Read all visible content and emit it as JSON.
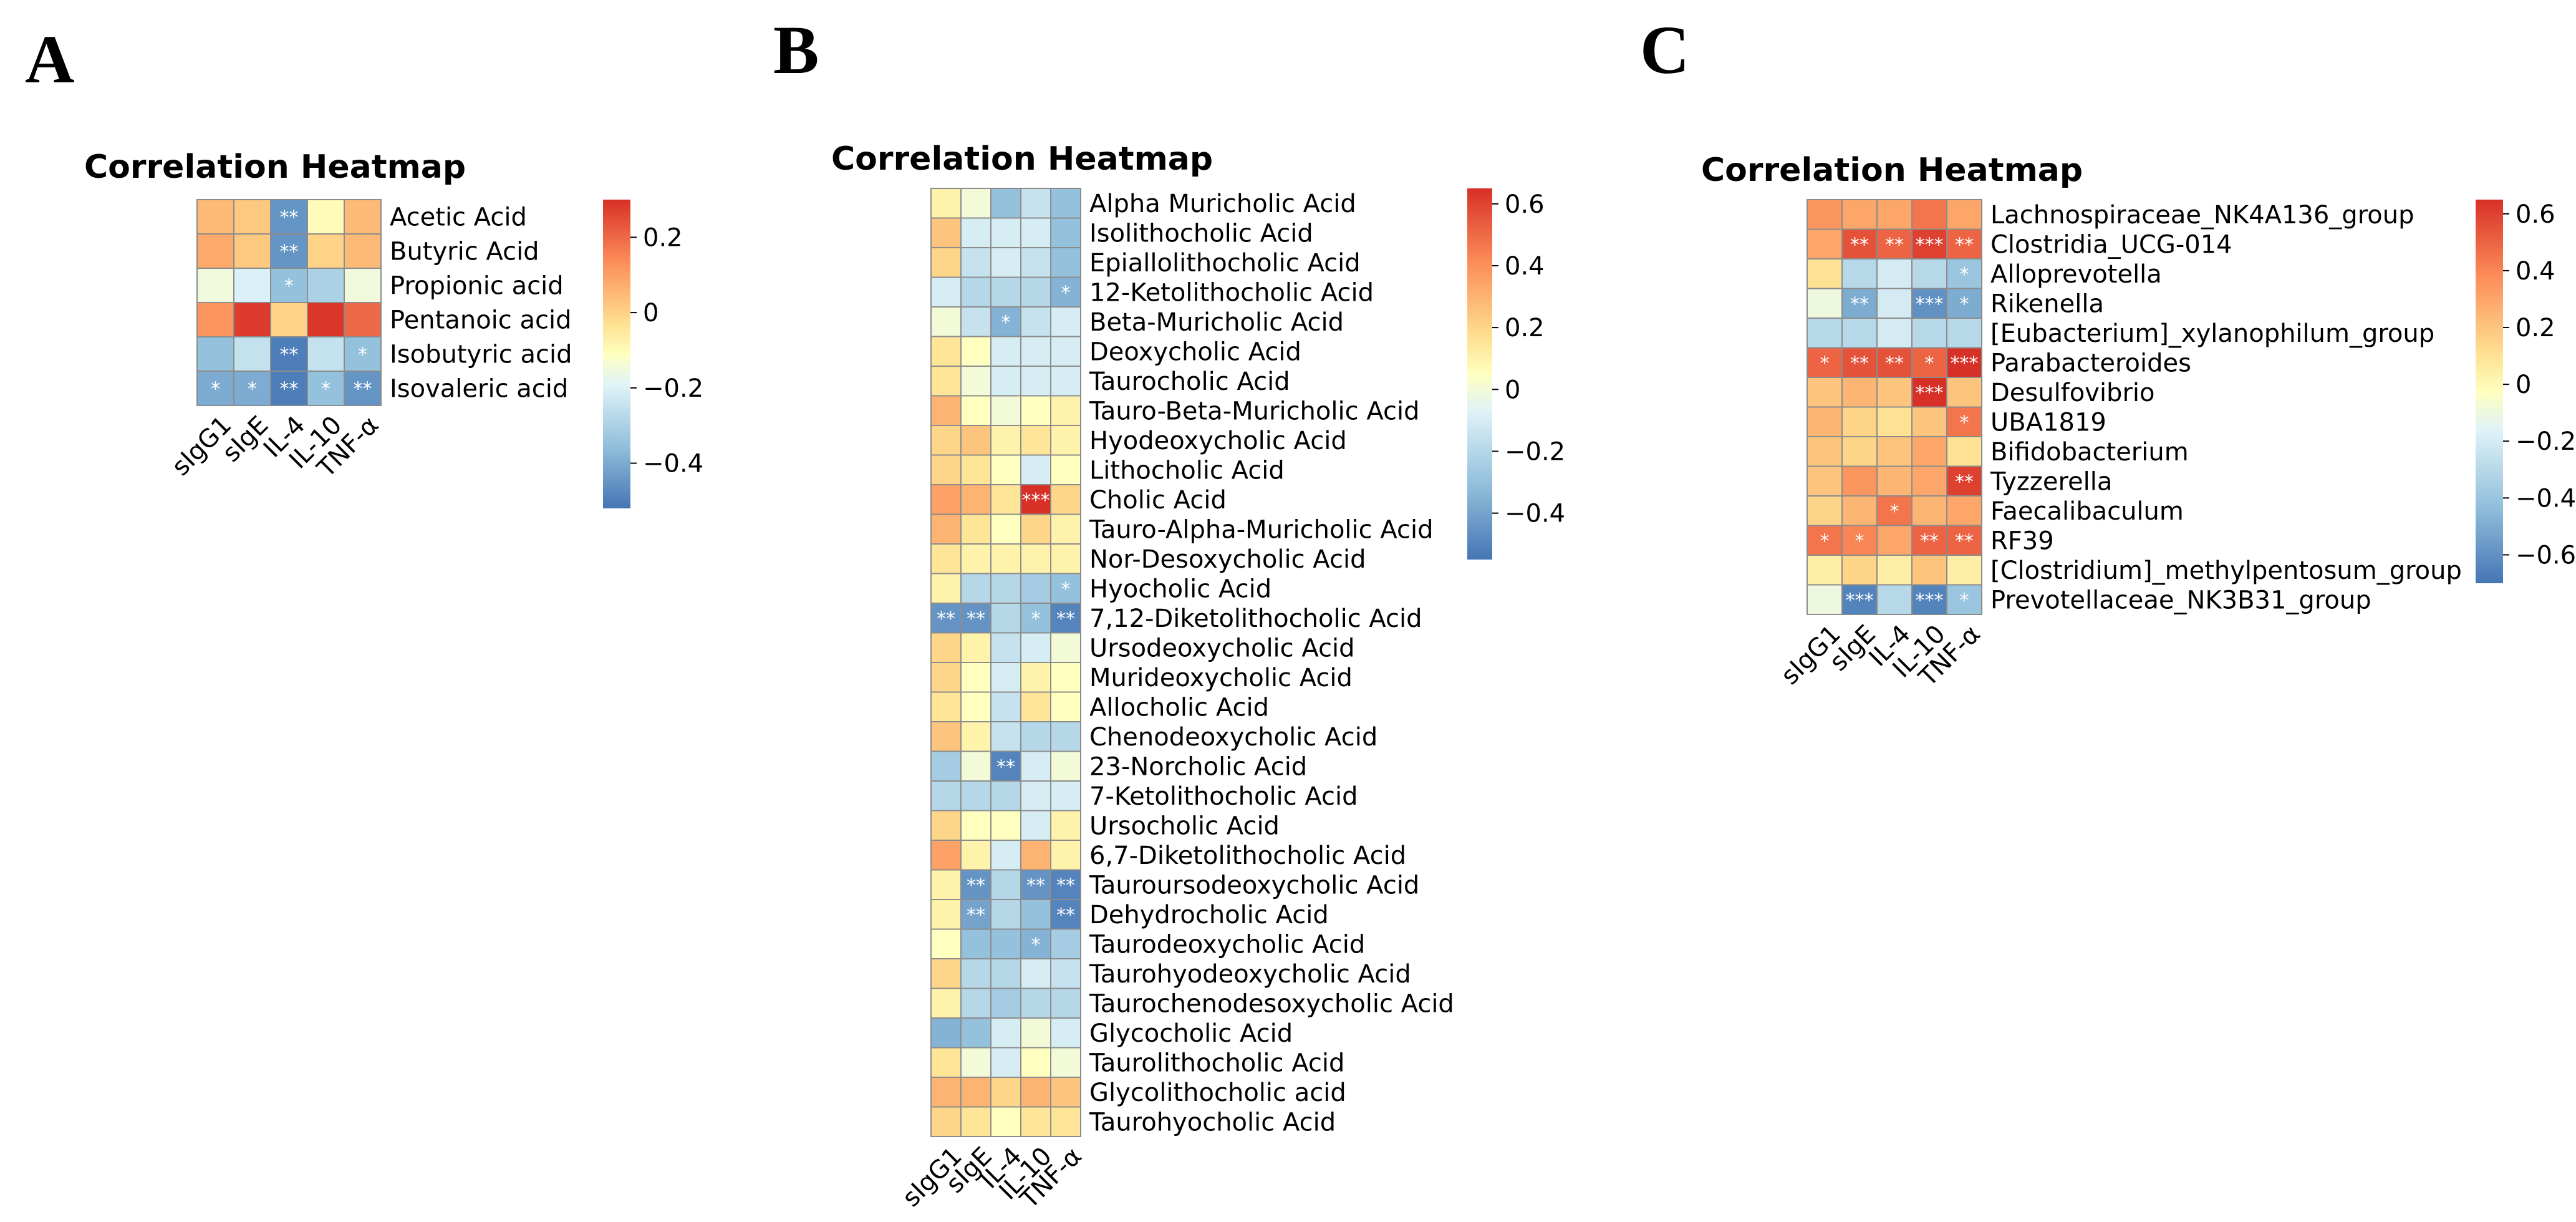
{
  "chart_data": [
    {
      "type": "heatmap",
      "panel_label": "A",
      "title": "Correlation Heatmap",
      "columns": [
        "sIgG1",
        "sIgE",
        "IL-4",
        "IL-10",
        "TNF-α"
      ],
      "rows": [
        "Acetic Acid",
        "Butyric Acid",
        "Propionic acid",
        "Pentanoic acid",
        "Isobutyric acid",
        "Isovaleric acid"
      ],
      "values": [
        [
          0.05,
          0.02,
          -0.45,
          -0.1,
          0.05
        ],
        [
          0.08,
          0.02,
          -0.45,
          0.0,
          0.05
        ],
        [
          -0.15,
          -0.2,
          -0.35,
          -0.3,
          -0.15
        ],
        [
          0.12,
          0.28,
          0.0,
          0.29,
          0.2
        ],
        [
          -0.35,
          -0.25,
          -0.5,
          -0.25,
          -0.35
        ],
        [
          -0.4,
          -0.4,
          -0.5,
          -0.35,
          -0.45
        ]
      ],
      "significance": [
        [
          "",
          "",
          "**",
          "",
          ""
        ],
        [
          "",
          "",
          "**",
          "",
          ""
        ],
        [
          "",
          "",
          "*",
          "",
          ""
        ],
        [
          "",
          "",
          "",
          "",
          ""
        ],
        [
          "",
          "",
          "**",
          "",
          "*"
        ],
        [
          "*",
          "*",
          "**",
          "*",
          "**"
        ]
      ],
      "vmin": -0.52,
      "vmax": 0.3,
      "colorbar_ticks": [
        0.2,
        0,
        -0.2,
        -0.4
      ],
      "colorbar_labels": [
        "0.2",
        "0",
        "−0.2",
        "−0.4"
      ]
    },
    {
      "type": "heatmap",
      "panel_label": "B",
      "title": "Correlation Heatmap",
      "columns": [
        "sIgG1",
        "sIgE",
        "IL-4",
        "IL-10",
        "TNF-α"
      ],
      "rows": [
        "Alpha Muricholic Acid",
        "Isolithocholic Acid",
        "Epiallolithocholic Acid",
        "12-Ketolithocholic Acid",
        "Beta-Muricholic Acid",
        "Deoxycholic Acid",
        "Taurocholic Acid",
        "Tauro-Beta-Muricholic Acid",
        "Hyodeoxycholic Acid",
        "Lithocholic Acid",
        "Cholic Acid",
        "Tauro-Alpha-Muricholic Acid",
        "Nor-Desoxycholic Acid",
        "Hyocholic Acid",
        "7,12-Diketolithocholic Acid",
        "Ursodeoxycholic Acid",
        "Murideoxycholic Acid",
        "Allocholic Acid",
        "Chenodeoxycholic Acid",
        "23-Norcholic Acid",
        "7-Ketolithocholic Acid",
        "Ursocholic Acid",
        "6,7-Diketolithocholic Acid",
        "Tauroursodeoxycholic Acid",
        "Dehydrocholic Acid",
        "Taurodeoxycholic Acid",
        "Taurohyodeoxycholic Acid",
        "Taurochenodesoxycholic Acid",
        "Glycocholic Acid",
        "Taurolithocholic Acid",
        "Glycolithocholic acid",
        "Taurohyocholic Acid"
      ],
      "values": [
        [
          0.1,
          0.0,
          -0.3,
          -0.15,
          -0.3
        ],
        [
          0.25,
          -0.1,
          -0.1,
          -0.1,
          -0.3
        ],
        [
          0.2,
          -0.15,
          -0.1,
          -0.15,
          -0.3
        ],
        [
          -0.1,
          -0.2,
          -0.2,
          -0.2,
          -0.35
        ],
        [
          0.0,
          -0.15,
          -0.35,
          -0.15,
          -0.1
        ],
        [
          0.15,
          0.05,
          -0.1,
          -0.1,
          -0.1
        ],
        [
          0.15,
          0.0,
          -0.1,
          -0.1,
          -0.1
        ],
        [
          0.3,
          0.05,
          0.0,
          0.05,
          0.1
        ],
        [
          0.2,
          0.25,
          0.1,
          0.15,
          0.1
        ],
        [
          0.2,
          0.15,
          0.05,
          -0.1,
          0.05
        ],
        [
          0.35,
          0.3,
          0.15,
          0.65,
          0.2
        ],
        [
          0.3,
          0.15,
          0.05,
          0.2,
          0.1
        ],
        [
          0.15,
          0.1,
          0.1,
          0.1,
          0.1
        ],
        [
          0.1,
          -0.2,
          -0.2,
          -0.25,
          -0.3
        ],
        [
          -0.45,
          -0.45,
          -0.2,
          -0.3,
          -0.5
        ],
        [
          0.2,
          0.1,
          -0.15,
          -0.1,
          0.0
        ],
        [
          0.2,
          0.05,
          -0.1,
          0.1,
          0.05
        ],
        [
          0.15,
          0.05,
          -0.15,
          0.15,
          0.05
        ],
        [
          0.25,
          0.1,
          -0.15,
          -0.2,
          -0.2
        ],
        [
          -0.25,
          0.0,
          -0.5,
          -0.1,
          0.0
        ],
        [
          -0.2,
          -0.2,
          -0.2,
          -0.1,
          -0.1
        ],
        [
          0.2,
          0.05,
          0.05,
          -0.1,
          0.1
        ],
        [
          0.35,
          0.1,
          -0.1,
          0.3,
          0.1
        ],
        [
          0.1,
          -0.45,
          -0.2,
          -0.45,
          -0.5
        ],
        [
          0.1,
          -0.4,
          -0.2,
          -0.3,
          -0.5
        ],
        [
          0.05,
          -0.3,
          -0.3,
          -0.35,
          -0.25
        ],
        [
          0.2,
          -0.2,
          -0.2,
          -0.1,
          -0.15
        ],
        [
          0.1,
          -0.2,
          -0.25,
          -0.2,
          -0.2
        ],
        [
          -0.35,
          -0.3,
          -0.1,
          0.0,
          -0.1
        ],
        [
          0.15,
          0.0,
          -0.1,
          0.05,
          0.0
        ],
        [
          0.3,
          0.3,
          0.2,
          0.3,
          0.25
        ],
        [
          0.2,
          0.15,
          0.05,
          0.15,
          0.15
        ]
      ],
      "significance": [
        [
          "",
          "",
          "",
          "",
          ""
        ],
        [
          "",
          "",
          "",
          "",
          ""
        ],
        [
          "",
          "",
          "",
          "",
          ""
        ],
        [
          "",
          "",
          "",
          "",
          "*"
        ],
        [
          "",
          "",
          "*",
          "",
          ""
        ],
        [
          "",
          "",
          "",
          "",
          ""
        ],
        [
          "",
          "",
          "",
          "",
          ""
        ],
        [
          "",
          "",
          "",
          "",
          ""
        ],
        [
          "",
          "",
          "",
          "",
          ""
        ],
        [
          "",
          "",
          "",
          "",
          ""
        ],
        [
          "",
          "",
          "",
          "***",
          ""
        ],
        [
          "",
          "",
          "",
          "",
          ""
        ],
        [
          "",
          "",
          "",
          "",
          ""
        ],
        [
          "",
          "",
          "",
          "",
          "*"
        ],
        [
          "**",
          "**",
          "",
          "*",
          "**"
        ],
        [
          "",
          "",
          "",
          "",
          ""
        ],
        [
          "",
          "",
          "",
          "",
          ""
        ],
        [
          "",
          "",
          "",
          "",
          ""
        ],
        [
          "",
          "",
          "",
          "",
          ""
        ],
        [
          "",
          "",
          "**",
          "",
          ""
        ],
        [
          "",
          "",
          "",
          "",
          ""
        ],
        [
          "",
          "",
          "",
          "",
          ""
        ],
        [
          "",
          "",
          "",
          "",
          ""
        ],
        [
          "",
          "**",
          "",
          "**",
          "**"
        ],
        [
          "",
          "**",
          "",
          "",
          "**"
        ],
        [
          "",
          "",
          "",
          "*",
          ""
        ],
        [
          "",
          "",
          "",
          "",
          ""
        ],
        [
          "",
          "",
          "",
          "",
          ""
        ],
        [
          "",
          "",
          "",
          "",
          ""
        ],
        [
          "",
          "",
          "",
          "",
          ""
        ],
        [
          "",
          "",
          "",
          "",
          ""
        ],
        [
          "",
          "",
          "",
          "",
          ""
        ]
      ],
      "vmin": -0.55,
      "vmax": 0.65,
      "colorbar_ticks": [
        0.6,
        0.4,
        0.2,
        0,
        -0.2,
        -0.4
      ],
      "colorbar_labels": [
        "0.6",
        "0.4",
        "0.2",
        "0",
        "−0.2",
        "−0.4"
      ]
    },
    {
      "type": "heatmap",
      "panel_label": "C",
      "title": "Correlation Heatmap",
      "columns": [
        "sIgG1",
        "sIgE",
        "IL-4",
        "IL-10",
        "TNF-α"
      ],
      "rows": [
        "Lachnospiraceae_NK4A136_group",
        "Clostridia_UCG-014",
        "Alloprevotella",
        "Rikenella",
        "[Eubacterium]_xylanophilum_group",
        "Parabacteroides",
        "Desulfovibrio",
        "UBA1819",
        "Bifidobacterium",
        "Tyzzerella",
        "Faecalibaculum",
        "RF39",
        "[Clostridium]_methylpentosum_group",
        "Prevotellaceae_NK3B31_group"
      ],
      "values": [
        [
          0.35,
          0.3,
          0.3,
          0.45,
          0.3
        ],
        [
          0.3,
          0.55,
          0.5,
          0.6,
          0.5
        ],
        [
          0.1,
          -0.3,
          -0.2,
          -0.3,
          -0.4
        ],
        [
          -0.1,
          -0.5,
          -0.2,
          -0.6,
          -0.5
        ],
        [
          -0.3,
          -0.3,
          -0.2,
          -0.3,
          -0.3
        ],
        [
          0.5,
          0.55,
          0.55,
          0.5,
          0.7
        ],
        [
          0.2,
          0.25,
          0.2,
          0.7,
          0.2
        ],
        [
          0.25,
          0.15,
          0.1,
          0.2,
          0.45
        ],
        [
          0.2,
          0.15,
          0.2,
          0.3,
          0.1
        ],
        [
          0.2,
          0.35,
          0.25,
          0.3,
          0.6
        ],
        [
          0.15,
          0.25,
          0.45,
          0.25,
          0.3
        ],
        [
          0.45,
          0.4,
          0.3,
          0.5,
          0.5
        ],
        [
          0.05,
          0.15,
          0.05,
          0.2,
          0.05
        ],
        [
          -0.1,
          -0.65,
          -0.3,
          -0.65,
          -0.4
        ]
      ],
      "significance": [
        [
          "",
          "",
          "",
          "",
          ""
        ],
        [
          "",
          "**",
          "**",
          "***",
          "**"
        ],
        [
          "",
          "",
          "",
          "",
          "*"
        ],
        [
          "",
          "**",
          "",
          "***",
          "*"
        ],
        [
          "",
          "",
          "",
          "",
          ""
        ],
        [
          "*",
          "**",
          "**",
          "*",
          "***"
        ],
        [
          "",
          "",
          "",
          "***",
          ""
        ],
        [
          "",
          "",
          "",
          "",
          "*"
        ],
        [
          "",
          "",
          "",
          "",
          ""
        ],
        [
          "",
          "",
          "",
          "",
          "**"
        ],
        [
          "",
          "",
          "*",
          "",
          ""
        ],
        [
          "*",
          "*",
          "",
          "**",
          "**"
        ],
        [
          "",
          "",
          "",
          "",
          ""
        ],
        [
          "",
          "***",
          "",
          "***",
          "*"
        ]
      ],
      "vmin": -0.7,
      "vmax": 0.65,
      "colorbar_ticks": [
        0.6,
        0.4,
        0.2,
        0,
        -0.2,
        -0.4,
        -0.6
      ],
      "colorbar_labels": [
        "0.6",
        "0.4",
        "0.2",
        "0",
        "−0.2",
        "−0.4",
        "−0.6"
      ]
    }
  ]
}
